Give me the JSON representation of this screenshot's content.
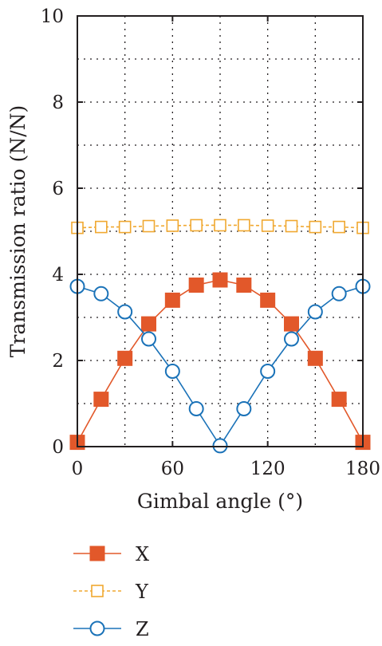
{
  "chart_data": {
    "type": "line",
    "xlabel": "Gimbal angle (°)",
    "ylabel": "Transmission ratio (N/N)",
    "xlim": [
      0,
      180
    ],
    "ylim": [
      0,
      10
    ],
    "x_ticks": [
      0,
      60,
      120,
      180
    ],
    "y_ticks": [
      0,
      2,
      4,
      6,
      8,
      10
    ],
    "grid": "dotted",
    "legend_position": "bottom",
    "x": [
      0,
      15,
      30,
      45,
      60,
      75,
      90,
      105,
      120,
      135,
      150,
      165,
      180
    ],
    "series": [
      {
        "name": "X",
        "marker": "filled-square",
        "color": "#e2582a",
        "values": [
          0.1,
          1.1,
          2.05,
          2.85,
          3.4,
          3.75,
          3.87,
          3.75,
          3.4,
          2.85,
          2.05,
          1.1,
          0.1
        ]
      },
      {
        "name": "Y",
        "marker": "open-square",
        "color": "#f0a830",
        "values": [
          5.08,
          5.1,
          5.1,
          5.12,
          5.13,
          5.14,
          5.14,
          5.14,
          5.13,
          5.12,
          5.1,
          5.1,
          5.08
        ]
      },
      {
        "name": "Z",
        "marker": "open-circle",
        "color": "#1a72b8",
        "values": [
          3.72,
          3.55,
          3.13,
          2.5,
          1.75,
          0.88,
          0.02,
          0.88,
          1.75,
          2.5,
          3.13,
          3.55,
          3.72
        ]
      }
    ]
  }
}
